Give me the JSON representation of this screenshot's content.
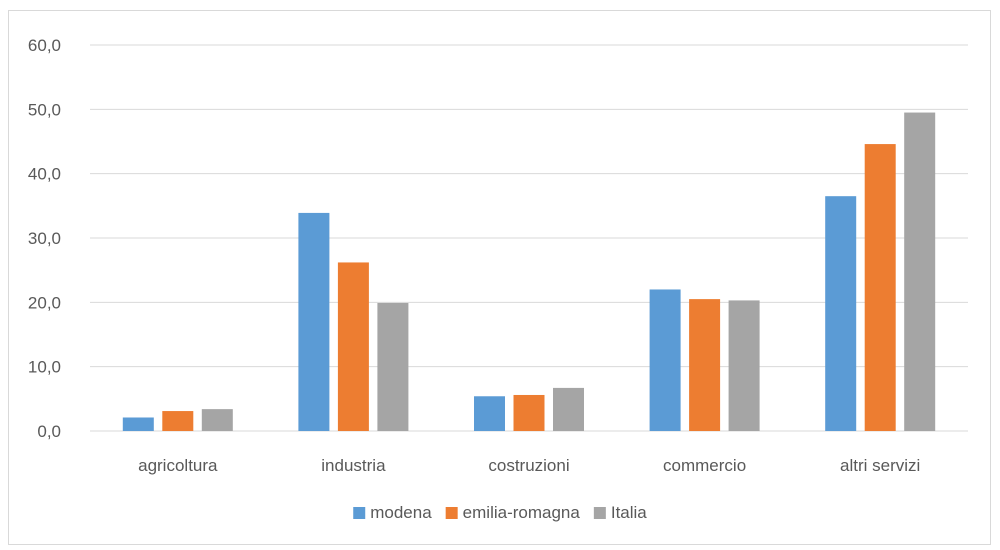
{
  "chart_data": {
    "type": "bar",
    "categories": [
      "agricoltura",
      "industria",
      "costruzioni",
      "commercio",
      "altri servizi"
    ],
    "series": [
      {
        "name": "modena",
        "color": "#5b9bd5",
        "values": [
          2.1,
          33.9,
          5.4,
          22.0,
          36.5
        ]
      },
      {
        "name": "emilia-romagna",
        "color": "#ed7d31",
        "values": [
          3.1,
          26.2,
          5.6,
          20.5,
          44.6
        ]
      },
      {
        "name": "Italia",
        "color": "#a5a5a5",
        "values": [
          3.4,
          19.9,
          6.7,
          20.3,
          49.5
        ]
      }
    ],
    "y_ticks": [
      "0,0",
      "10,0",
      "20,0",
      "30,0",
      "40,0",
      "50,0",
      "60,0"
    ],
    "ylim": [
      0,
      60
    ],
    "title": "",
    "xlabel": "",
    "ylabel": "",
    "grid": true,
    "legend_position": "bottom"
  }
}
